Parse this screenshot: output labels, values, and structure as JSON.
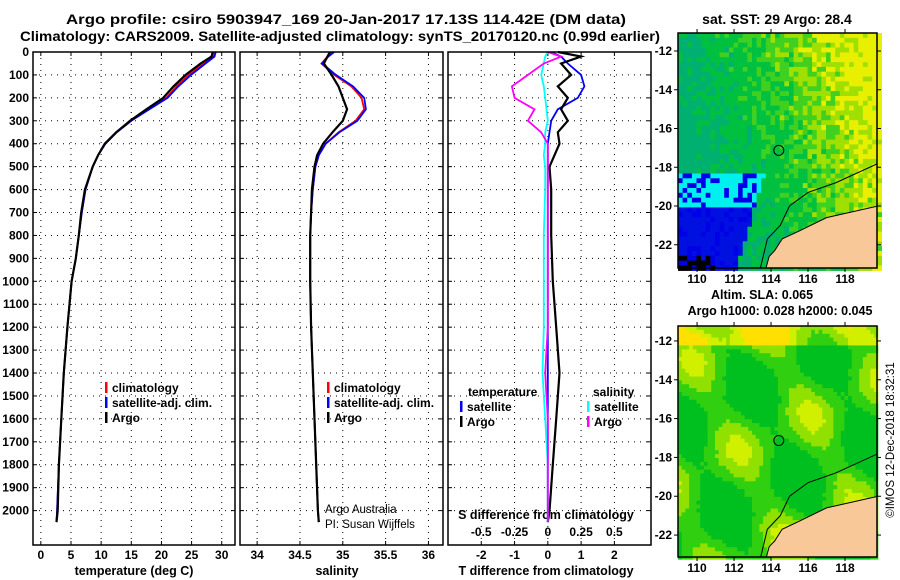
{
  "title_line1": "Argo profile: csiro 5903947_169 20-Jan-2017 17.13S 114.42E (DM data)",
  "title_line2": "Climatology: CARS2009. Satellite-adjusted climatology: synTS_20170120.nc (0.99d earlier)",
  "credit": "Argo Australia",
  "pi": "PI: Susan Wijffels",
  "stamp": "©IMOS 12-Dec-2018 18:32:31",
  "colors": {
    "climatology": "#ff0000",
    "satellite": "#0000ff",
    "argo": "#000000",
    "sat_salinity": "#00ffff",
    "argo_salinity": "#ff00ff",
    "land": "#f8c898"
  },
  "chart_data": [
    {
      "type": "line",
      "id": "temperature",
      "xlabel": "temperature (deg C)",
      "ylabel": "",
      "xlim": [
        -1.3,
        32.2
      ],
      "ylim": [
        2150,
        0
      ],
      "xticks": [
        0,
        5,
        10,
        15,
        20,
        25,
        30
      ],
      "yticks": [
        0,
        100,
        200,
        300,
        400,
        500,
        600,
        700,
        800,
        900,
        1000,
        1100,
        1200,
        1300,
        1400,
        1500,
        1600,
        1700,
        1800,
        1900,
        2000
      ],
      "depth": [
        0,
        20,
        50,
        100,
        150,
        200,
        250,
        300,
        350,
        400,
        450,
        500,
        600,
        700,
        800,
        900,
        1000,
        1200,
        1400,
        1600,
        1800,
        2000,
        2050
      ],
      "series": [
        {
          "name": "climatology",
          "color": "#ff0000",
          "values": [
            28.8,
            28.6,
            27,
            24.5,
            22.5,
            20.8,
            17.8,
            14.8,
            12.5,
            10.7,
            9.5,
            8.6,
            7.4,
            6.8,
            6.3,
            5.8,
            5.1,
            4.4,
            3.8,
            3.4,
            3.0,
            2.7,
            2.6
          ]
        },
        {
          "name": "satellite-adj. clim.",
          "color": "#0000ff",
          "values": [
            29.0,
            28.8,
            27.3,
            24.9,
            22.8,
            21.0,
            18.0,
            15.0,
            12.6,
            10.7,
            9.5,
            8.6,
            7.4,
            6.8,
            6.3,
            5.8,
            5.1,
            4.4,
            3.8,
            3.4,
            3.0,
            2.7,
            2.6
          ]
        },
        {
          "name": "Argo",
          "color": "#000000",
          "values": [
            28.5,
            28.3,
            26.5,
            24,
            22,
            20.3,
            17.5,
            14.8,
            12.5,
            10.6,
            9.5,
            8.6,
            7.3,
            6.7,
            6.3,
            5.8,
            5.1,
            4.4,
            3.8,
            3.4,
            3.0,
            2.8,
            2.6
          ]
        }
      ]
    },
    {
      "type": "line",
      "id": "salinity",
      "xlabel": "salinity",
      "xlim": [
        33.8,
        36.17
      ],
      "ylim": [
        2150,
        0
      ],
      "xticks": [
        34,
        34.5,
        35,
        35.5,
        36
      ],
      "depth": [
        0,
        20,
        50,
        100,
        150,
        200,
        250,
        300,
        350,
        400,
        450,
        500,
        600,
        700,
        800,
        900,
        1000,
        1200,
        1400,
        1600,
        1800,
        2000,
        2050
      ],
      "series": [
        {
          "name": "climatology",
          "color": "#ff0000",
          "values": [
            34.88,
            34.82,
            34.75,
            34.9,
            35.1,
            35.22,
            35.25,
            35.15,
            34.95,
            34.8,
            34.72,
            34.68,
            34.65,
            34.63,
            34.62,
            34.62,
            34.62,
            34.63,
            34.65,
            34.67,
            34.69,
            34.71,
            34.72
          ]
        },
        {
          "name": "satellite-adj. clim.",
          "color": "#0000ff",
          "values": [
            34.9,
            34.83,
            34.76,
            34.92,
            35.12,
            35.25,
            35.27,
            35.17,
            34.96,
            34.8,
            34.72,
            34.68,
            34.65,
            34.63,
            34.62,
            34.62,
            34.62,
            34.63,
            34.65,
            34.67,
            34.69,
            34.71,
            34.72
          ]
        },
        {
          "name": "Argo",
          "color": "#000000",
          "values": [
            34.85,
            34.82,
            34.78,
            34.87,
            34.95,
            35.0,
            35.05,
            35.0,
            34.88,
            34.77,
            34.7,
            34.67,
            34.64,
            34.63,
            34.62,
            34.62,
            34.62,
            34.63,
            34.65,
            34.67,
            34.69,
            34.71,
            34.72
          ]
        }
      ]
    },
    {
      "type": "line",
      "id": "differences",
      "xlabel": "T difference from climatology",
      "x2label": "S difference from climatology",
      "xlim": [
        -3,
        3.1
      ],
      "ylim": [
        2150,
        0
      ],
      "xticks": [
        -2,
        -1,
        0,
        1,
        2
      ],
      "x2ticks": [
        -0.5,
        -0.25,
        0,
        0.25,
        0.5
      ],
      "x2tick_labels": [
        "-0.5",
        "-0.25",
        "0",
        "0.25",
        "0.5"
      ],
      "depth": [
        0,
        20,
        50,
        100,
        150,
        200,
        250,
        300,
        350,
        400,
        450,
        500,
        600,
        800,
        1000,
        1200,
        1400,
        1600,
        1800,
        2000,
        2050
      ],
      "legend_headers": [
        "temperature",
        "salinity"
      ],
      "series": [
        {
          "name": "satellite",
          "group": "temperature",
          "units": "T",
          "color": "#0000ff",
          "values": [
            0.1,
            0.4,
            0.6,
            1.0,
            1.1,
            0.9,
            0.3,
            0.1,
            0.05,
            0,
            0,
            0,
            0,
            0,
            0,
            0,
            0,
            0,
            0,
            0,
            0
          ]
        },
        {
          "name": "Argo",
          "group": "temperature",
          "units": "T",
          "color": "#000000",
          "values": [
            0.3,
            1.0,
            0.4,
            0.7,
            0.3,
            0.6,
            0.4,
            0.6,
            0.3,
            0.35,
            0.2,
            0.05,
            0.1,
            0.1,
            0.15,
            0.25,
            0.35,
            0.25,
            0.15,
            0.05,
            0
          ]
        },
        {
          "name": "satellite",
          "group": "salinity",
          "units": "S",
          "color": "#00ffff",
          "values": [
            0,
            -0.02,
            -0.03,
            -0.05,
            -0.03,
            -0.02,
            -0.01,
            0,
            -0.02,
            -0.02,
            -0.03,
            -0.02,
            -0.02,
            -0.03,
            -0.03,
            -0.03,
            -0.04,
            -0.02,
            0,
            0,
            0
          ]
        },
        {
          "name": "Argo",
          "group": "salinity",
          "units": "S",
          "color": "#ff00ff",
          "values": [
            0,
            0.1,
            -0.03,
            -0.15,
            -0.27,
            -0.25,
            -0.1,
            -0.15,
            -0.05,
            0,
            0,
            0,
            0,
            0,
            0,
            0,
            -0.02,
            0,
            0,
            0,
            0
          ]
        }
      ]
    },
    {
      "type": "heatmap",
      "id": "sst_map",
      "title": "sat. SST: 29 Argo: 28.4",
      "xlim": [
        108.97,
        119.73
      ],
      "ylim": [
        -23.2,
        -11.07
      ],
      "xticks": [
        110,
        112,
        114,
        116,
        118
      ],
      "yticks": [
        -12,
        -14,
        -16,
        -18,
        -20,
        -22
      ],
      "argo_position": [
        114.42,
        -17.13
      ]
    },
    {
      "type": "heatmap",
      "id": "sla_map",
      "title_line1": "Altim. SLA: 0.065",
      "title_line2": "Argo h1000: 0.028 h2000: 0.045",
      "xlim": [
        108.97,
        119.73
      ],
      "ylim": [
        -23.13,
        -11.23
      ],
      "xticks": [
        110,
        112,
        114,
        116,
        118
      ],
      "yticks": [
        -12,
        -14,
        -16,
        -18,
        -20,
        -22
      ],
      "argo_position": [
        114.42,
        -17.13
      ]
    }
  ]
}
